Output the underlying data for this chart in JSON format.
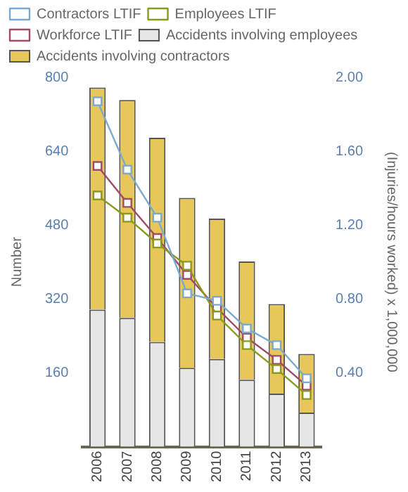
{
  "chart_data": {
    "type": "bar",
    "stacked": true,
    "ylabel": "Number",
    "y2label": "(Injuries/hours worked) x 1,000,000",
    "categories": [
      "2006",
      "2007",
      "2008",
      "2009",
      "2010",
      "2011",
      "2012",
      "2013"
    ],
    "series": [
      {
        "name": "Accidents involving employees",
        "color": "#e6e6e6",
        "values": [
          297,
          279,
          227,
          171,
          190,
          145,
          115,
          74
        ]
      },
      {
        "name": "Accidents involving contractors",
        "color": "#e8c75a",
        "values": [
          481,
          472,
          442,
          368,
          304,
          256,
          194,
          127
        ]
      },
      {
        "name": "Contractors LTIF",
        "type": "line",
        "axis": "y2",
        "color": "#7aaacf",
        "values": [
          1.87,
          1.5,
          1.24,
          0.83,
          0.79,
          0.64,
          0.55,
          0.37
        ]
      },
      {
        "name": "Employees LTIF",
        "type": "line",
        "axis": "y2",
        "color": "#8a9a1a",
        "values": [
          1.36,
          1.24,
          1.1,
          0.98,
          0.71,
          0.55,
          0.42,
          0.28
        ]
      },
      {
        "name": "Workforce LTIF",
        "type": "line",
        "axis": "y2",
        "color": "#a04a6a",
        "values": [
          1.52,
          1.32,
          1.13,
          0.93,
          0.75,
          0.59,
          0.47,
          0.33
        ]
      }
    ],
    "ylim": [
      0,
      800
    ],
    "yticks": [
      160,
      320,
      480,
      640,
      800
    ],
    "y2lim": [
      0,
      2
    ],
    "y2ticks": [
      {
        "value": 0.4,
        "label": "0.40"
      },
      {
        "value": 0.8,
        "label": "0.80"
      },
      {
        "value": 1.2,
        "label": "1.20"
      },
      {
        "value": 1.6,
        "label": "1.60"
      },
      {
        "value": 2,
        "label": "2.00"
      }
    ],
    "grid": false,
    "legend": "top",
    "marker": "square",
    "line_style": "solid"
  }
}
